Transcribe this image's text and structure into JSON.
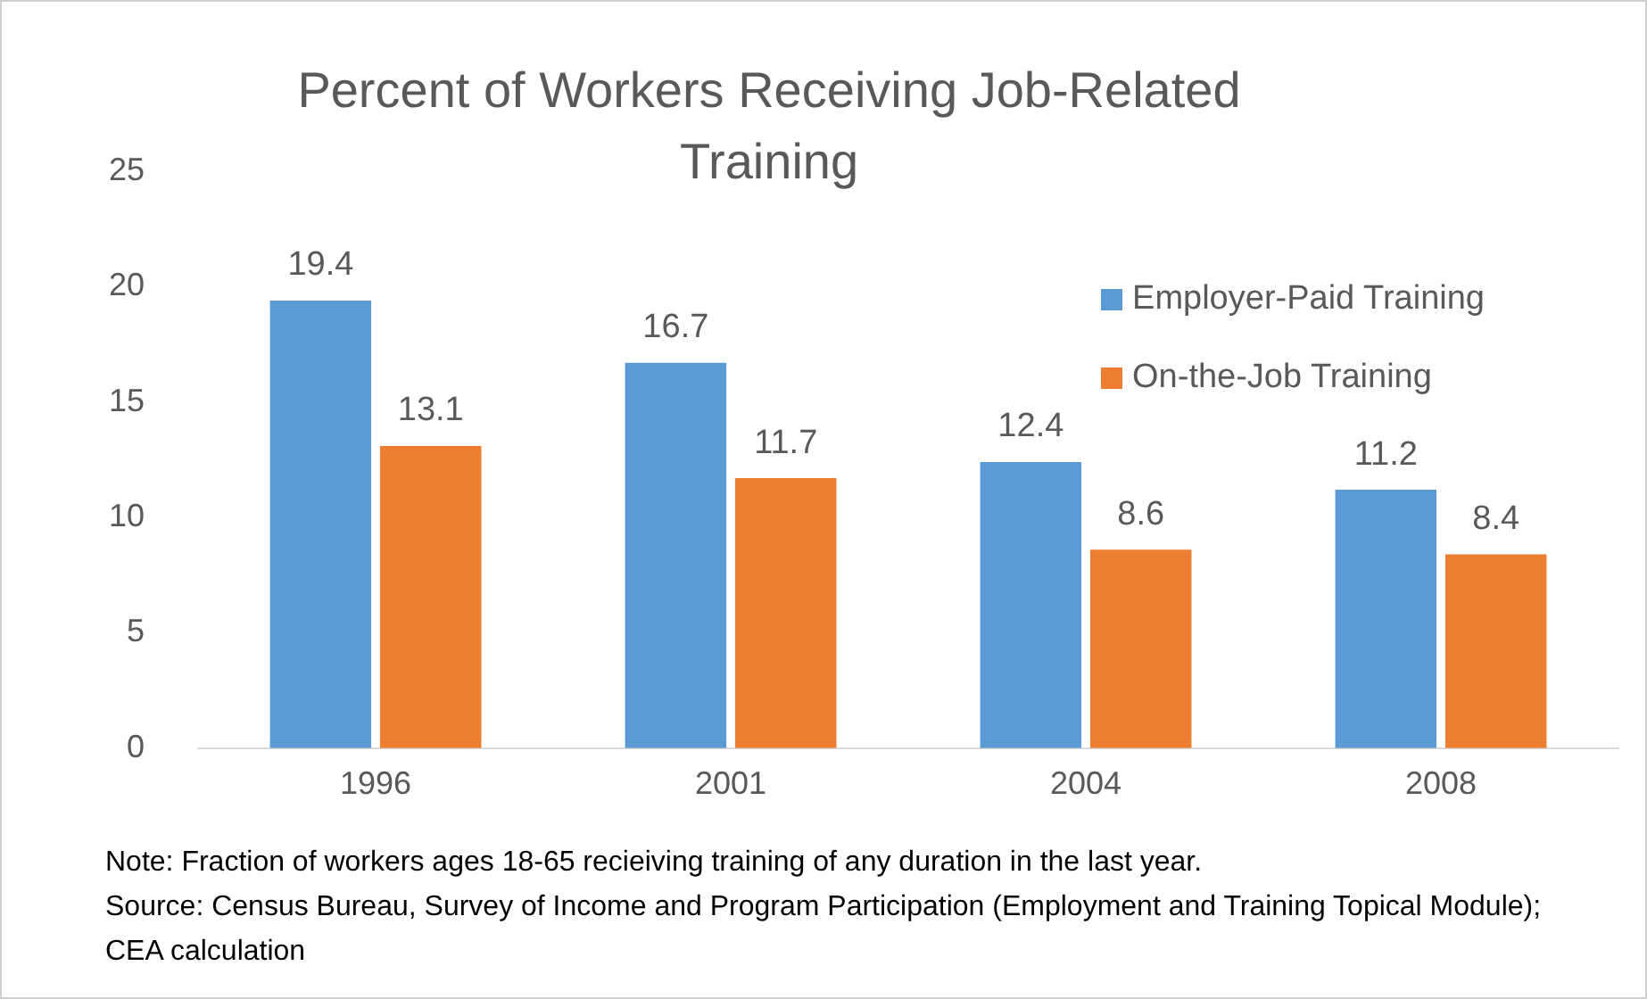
{
  "chart_data": {
    "type": "bar",
    "title": "Percent of Workers Receiving Job-Related Training",
    "categories": [
      "1996",
      "2001",
      "2004",
      "2008"
    ],
    "series": [
      {
        "name": "Employer-Paid Training",
        "color": "#5b9bd5",
        "values": [
          19.4,
          16.7,
          12.4,
          11.2
        ]
      },
      {
        "name": "On-the-Job Training",
        "color": "#ed7d31",
        "values": [
          13.1,
          11.7,
          8.6,
          8.4
        ]
      }
    ],
    "ylim": [
      0,
      25
    ],
    "yticks": [
      0,
      5,
      10,
      15,
      20,
      25
    ],
    "grid": false,
    "legend": "top right",
    "data_labels": true,
    "annotations": [
      "Note: Fraction of workers ages 18-65 recieiving training of any duration in the last year.",
      "Source: Census Bureau, Survey of Income and Program Participation (Employment and Training Topical Module); CEA calculation"
    ]
  }
}
